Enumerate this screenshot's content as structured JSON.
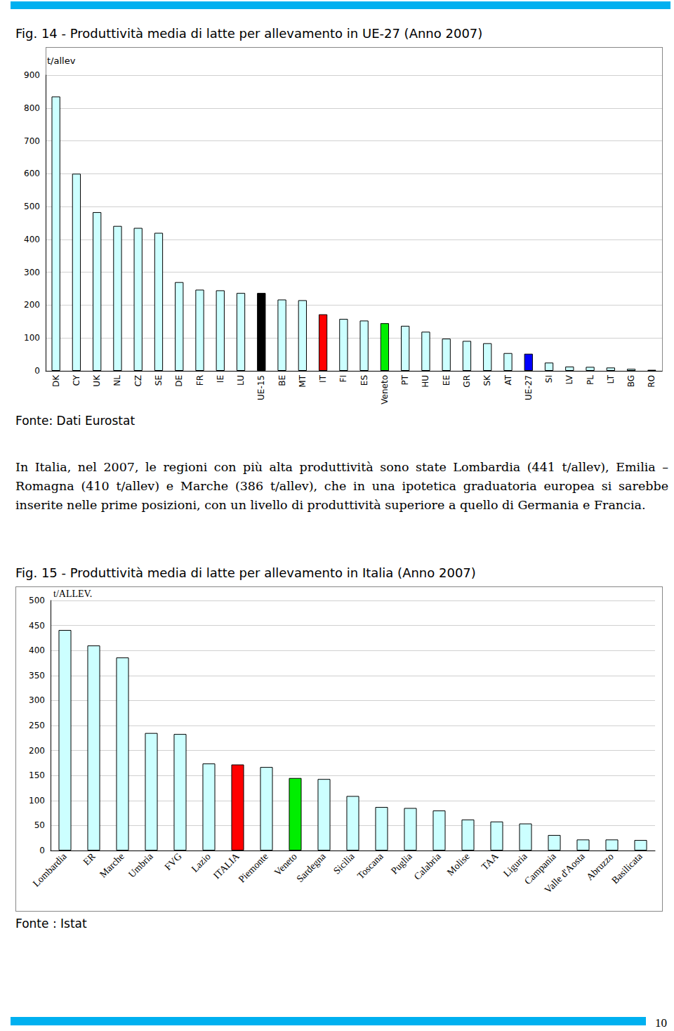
{
  "chart_data": [
    {
      "type": "bar",
      "title": "Fig. 14 - Produttività media di latte per allevamento in UE-27 (Anno 2007)",
      "y_label": "t/allev",
      "categories": [
        "DK",
        "CY",
        "UK",
        "NL",
        "CZ",
        "SE",
        "DE",
        "FR",
        "IE",
        "LU",
        "UE-15",
        "BE",
        "MT",
        "IT",
        "FI",
        "ES",
        "Veneto",
        "PT",
        "HU",
        "EE",
        "GR",
        "SK",
        "AT",
        "UE-27",
        "SI",
        "LV",
        "PL",
        "LT",
        "BG",
        "RO"
      ],
      "values": [
        835,
        600,
        483,
        441,
        435,
        420,
        270,
        247,
        245,
        237,
        237,
        217,
        215,
        172,
        158,
        153,
        145,
        137,
        119,
        98,
        91,
        84,
        54,
        52,
        25,
        13,
        12,
        10,
        6,
        3
      ],
      "colors": [
        "#ccffff",
        "#ccffff",
        "#ccffff",
        "#ccffff",
        "#ccffff",
        "#ccffff",
        "#ccffff",
        "#ccffff",
        "#ccffff",
        "#ccffff",
        "#000000",
        "#ccffff",
        "#ccffff",
        "#ff0000",
        "#ccffff",
        "#ccffff",
        "#00ee00",
        "#ccffff",
        "#ccffff",
        "#ccffff",
        "#ccffff",
        "#ccffff",
        "#ccffff",
        "#0000ff",
        "#ccffff",
        "#ccffff",
        "#ccffff",
        "#ccffff",
        "#ccffff",
        "#ccffff"
      ],
      "ylim": [
        0,
        900
      ],
      "yticks": [
        0,
        100,
        200,
        300,
        400,
        500,
        600,
        700,
        800,
        900
      ],
      "grid": true
    },
    {
      "type": "bar",
      "title": "Fig. 15 - Produttività media di latte per allevamento in Italia (Anno 2007)",
      "y_label": "t/ALLEV.",
      "categories": [
        "Lombardia",
        "ER",
        "Marche",
        "Umbria",
        "FVG",
        "Lazio",
        "ITALIA",
        "Piemonte",
        "Veneto",
        "Sardegna",
        "Sicilia",
        "Toscana",
        "Puglia",
        "Calabria",
        "Molise",
        "TAA",
        "Liguria",
        "Campania",
        "Valle d'Aosta",
        "Abruzzo",
        "Basilicata"
      ],
      "values": [
        441,
        410,
        386,
        235,
        233,
        174,
        172,
        167,
        145,
        143,
        109,
        87,
        85,
        80,
        62,
        58,
        54,
        31,
        22,
        22,
        21
      ],
      "colors": [
        "#ccffff",
        "#ccffff",
        "#ccffff",
        "#ccffff",
        "#ccffff",
        "#ccffff",
        "#ff0000",
        "#ccffff",
        "#00ee00",
        "#ccffff",
        "#ccffff",
        "#ccffff",
        "#ccffff",
        "#ccffff",
        "#ccffff",
        "#ccffff",
        "#ccffff",
        "#ccffff",
        "#ccffff",
        "#ccffff",
        "#ccffff"
      ],
      "ylim": [
        0,
        500
      ],
      "yticks": [
        0,
        50,
        100,
        150,
        200,
        250,
        300,
        350,
        400,
        450,
        500
      ],
      "grid": true
    }
  ],
  "document": {
    "sources": [
      "Fonte: Dati Eurostat",
      "Fonte : Istat"
    ],
    "paragraph": "In Italia, nel 2007, le regioni con più alta produttività sono state Lombardia (441 t/allev), Emilia – Romagna (410 t/allev) e Marche (386 t/allev), che in una ipotetica graduatoria europea si sarebbe inserite nelle prime posizioni, con un livello di produttività superiore a quello di Germania e Francia.",
    "page_number": "10"
  }
}
